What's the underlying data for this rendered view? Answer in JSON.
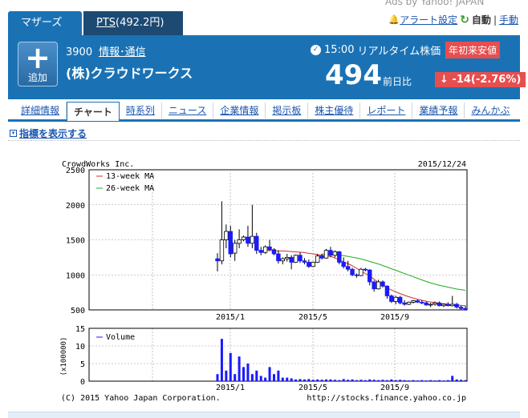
{
  "ads": "Ads by Yahoo! JAPAN",
  "tabs": [
    {
      "label": "マザーズ"
    },
    {
      "label": "PTS",
      "value": "(492.2円)"
    }
  ],
  "top_right": {
    "alert_label": "アラート設定",
    "auto_label": "自動",
    "separator": "|",
    "manual_label": "手動"
  },
  "stock": {
    "add_label": "追加",
    "code": "3900",
    "industry": "情報･通信",
    "name": "(株)クラウドワークス",
    "time": "15:00",
    "realtime_label": "リアルタイム株価",
    "badge": "年初来安値",
    "price": "494",
    "prev_label": "前日比",
    "change": "-14(-2.76%)"
  },
  "nav": [
    "詳細情報",
    "チャート",
    "時系列",
    "ニュース",
    "企業情報",
    "掲示板",
    "株主優待",
    "レポート",
    "業績予報",
    "みんかぶ"
  ],
  "indicator_label": "指標を表示する",
  "colors": {
    "brand_blue": "#1a72b5",
    "dark_tab": "#1c4a73",
    "red": "#e84e4e",
    "candle": "#1a1aff",
    "ma13": "#d03030",
    "ma26": "#22aa22"
  },
  "chart_data": {
    "type": "candlestick",
    "title": "CrowdWorks Inc.",
    "date": "2015/12/24",
    "legend": [
      "13-week MA",
      "26-week MA"
    ],
    "y_ticks": [
      2500,
      2000,
      1500,
      1000,
      500
    ],
    "ylim": [
      500,
      2500
    ],
    "x_ticks": [
      "2015/1",
      "2015/5",
      "2015/9"
    ],
    "candles": [
      [
        1230,
        1310,
        1050,
        1200
      ],
      [
        1200,
        2050,
        1150,
        1500
      ],
      [
        1500,
        1720,
        1380,
        1620
      ],
      [
        1620,
        1700,
        1250,
        1300
      ],
      [
        1310,
        1500,
        1200,
        1450
      ],
      [
        1450,
        1650,
        1380,
        1500
      ],
      [
        1500,
        1560,
        1480,
        1540
      ],
      [
        1540,
        1700,
        1400,
        1450
      ],
      [
        1450,
        2000,
        1380,
        1550
      ],
      [
        1550,
        1600,
        1300,
        1350
      ],
      [
        1350,
        1400,
        1280,
        1320
      ],
      [
        1320,
        1420,
        1300,
        1400
      ],
      [
        1400,
        1500,
        1340,
        1360
      ],
      [
        1360,
        1380,
        1280,
        1300
      ],
      [
        1300,
        1350,
        1160,
        1200
      ],
      [
        1200,
        1250,
        1150,
        1230
      ],
      [
        1230,
        1300,
        1190,
        1250
      ],
      [
        1250,
        1280,
        1080,
        1180
      ],
      [
        1180,
        1290,
        1170,
        1280
      ],
      [
        1280,
        1320,
        1170,
        1200
      ],
      [
        1200,
        1240,
        1150,
        1180
      ],
      [
        1180,
        1220,
        1100,
        1120
      ],
      [
        1120,
        1190,
        1110,
        1180
      ],
      [
        1180,
        1300,
        1170,
        1270
      ],
      [
        1270,
        1300,
        1220,
        1240
      ],
      [
        1240,
        1370,
        1230,
        1350
      ],
      [
        1350,
        1400,
        1250,
        1280
      ],
      [
        1280,
        1350,
        1250,
        1330
      ],
      [
        1330,
        1340,
        1150,
        1180
      ],
      [
        1180,
        1250,
        1090,
        1120
      ],
      [
        1120,
        1200,
        1050,
        1080
      ],
      [
        1080,
        1100,
        980,
        1000
      ],
      [
        1000,
        1020,
        960,
        990
      ],
      [
        990,
        1100,
        980,
        1080
      ],
      [
        1080,
        1100,
        1050,
        1070
      ],
      [
        1070,
        1080,
        850,
        900
      ],
      [
        900,
        920,
        760,
        800
      ],
      [
        800,
        930,
        790,
        900
      ],
      [
        900,
        920,
        820,
        840
      ],
      [
        840,
        850,
        660,
        700
      ],
      [
        700,
        720,
        600,
        620
      ],
      [
        620,
        700,
        580,
        680
      ],
      [
        680,
        700,
        580,
        600
      ],
      [
        600,
        640,
        560,
        580
      ],
      [
        580,
        620,
        570,
        610
      ],
      [
        610,
        640,
        590,
        630
      ],
      [
        630,
        650,
        600,
        610
      ],
      [
        610,
        640,
        580,
        600
      ],
      [
        600,
        620,
        560,
        570
      ],
      [
        570,
        600,
        540,
        580
      ],
      [
        580,
        620,
        560,
        600
      ],
      [
        600,
        620,
        550,
        560
      ],
      [
        560,
        590,
        540,
        580
      ],
      [
        580,
        610,
        550,
        560
      ],
      [
        560,
        700,
        550,
        580
      ],
      [
        580,
        600,
        520,
        540
      ],
      [
        540,
        560,
        500,
        520
      ],
      [
        520,
        560,
        490,
        500
      ]
    ],
    "ma13": [
      [
        1400,
        1350
      ],
      [
        1440,
        1345
      ],
      [
        1480,
        1340
      ],
      [
        1500,
        1335
      ],
      [
        1520,
        1330
      ],
      [
        1560,
        1320
      ],
      [
        1600,
        1300
      ],
      [
        1640,
        1280
      ],
      [
        1680,
        1260
      ],
      [
        1720,
        1200
      ],
      [
        1760,
        1140
      ],
      [
        1800,
        1060
      ],
      [
        1840,
        980
      ],
      [
        1880,
        880
      ],
      [
        1920,
        800
      ],
      [
        1960,
        740
      ],
      [
        2000,
        690
      ],
      [
        2040,
        650
      ],
      [
        2080,
        620
      ],
      [
        2120,
        600
      ],
      [
        2160,
        585
      ],
      [
        2200,
        570
      ],
      [
        2240,
        560
      ]
    ],
    "ma26": [
      [
        1640,
        1300
      ],
      [
        1680,
        1290
      ],
      [
        1720,
        1280
      ],
      [
        1760,
        1255
      ],
      [
        1800,
        1230
      ],
      [
        1840,
        1190
      ],
      [
        1880,
        1150
      ],
      [
        1920,
        1100
      ],
      [
        1960,
        1050
      ],
      [
        2000,
        1000
      ],
      [
        2040,
        950
      ],
      [
        2080,
        900
      ],
      [
        2120,
        860
      ],
      [
        2160,
        830
      ],
      [
        2200,
        800
      ],
      [
        2240,
        780
      ]
    ],
    "volume_label": "Volume",
    "volume_ylabel": "(x100000)",
    "volume_ticks": [
      15,
      10,
      5,
      0
    ],
    "volume_ylim": [
      0,
      15
    ],
    "volume": [
      2,
      12,
      3,
      8,
      2,
      7,
      4,
      5,
      2,
      3,
      1.5,
      1,
      4,
      2,
      3,
      1,
      1,
      0.8,
      0.5,
      0.6,
      0.5,
      0.6,
      0.4,
      0.5,
      0.4,
      0.5,
      0.5,
      0.4,
      0.3,
      0.6,
      0.4,
      0.5,
      0.3,
      0.4,
      0.3,
      0.5,
      0.4,
      0.3,
      0.4,
      0.3,
      0.5,
      0.3,
      0.4,
      0.3,
      0.2,
      0.3,
      0.2,
      0.3,
      0.2,
      0.3,
      0.2,
      0.3,
      0.2,
      0.3,
      1.5,
      0.5,
      0.4,
      0.3
    ],
    "copyright": "(C) 2015 Yahoo Japan Corporation.",
    "source": "http://stocks.finance.yahoo.co.jp"
  }
}
